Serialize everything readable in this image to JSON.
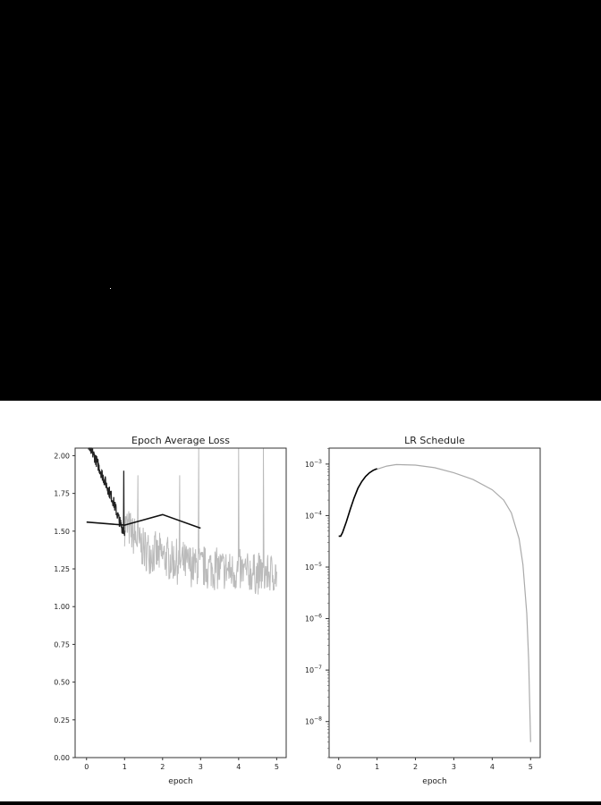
{
  "chart_data": [
    {
      "type": "line",
      "title": "Epoch Average Loss",
      "xlabel": "epoch",
      "ylabel": "",
      "xlim": [
        -0.3,
        5.25
      ],
      "ylim": [
        0.0,
        2.05
      ],
      "xticks": [
        "0",
        "1",
        "2",
        "3",
        "4",
        "5"
      ],
      "yticks": [
        "0.00",
        "0.25",
        "0.50",
        "0.75",
        "1.00",
        "1.25",
        "1.50",
        "1.75",
        "2.00"
      ],
      "grid": false,
      "series": [
        {
          "role": "smoothed-loss",
          "color": "#bbbbbb",
          "x_start": 1.0,
          "x_end": 5.0,
          "trend": [
            [
              1.0,
              1.55
            ],
            [
              1.5,
              1.38
            ],
            [
              2.0,
              1.33
            ],
            [
              2.5,
              1.29
            ],
            [
              3.0,
              1.26
            ],
            [
              3.5,
              1.25
            ],
            [
              4.0,
              1.23
            ],
            [
              4.5,
              1.22
            ],
            [
              5.0,
              1.22
            ]
          ],
          "noise": 0.12,
          "spikes": [
            [
              2.95,
              2.05
            ],
            [
              4.0,
              2.05
            ],
            [
              4.65,
              2.05
            ],
            [
              1.35,
              1.87
            ],
            [
              2.45,
              1.87
            ]
          ]
        },
        {
          "role": "early-loss",
          "color": "#222222",
          "points": [
            [
              0.05,
              2.05
            ],
            [
              0.1,
              2.04
            ],
            [
              0.2,
              2.0
            ],
            [
              0.3,
              1.94
            ],
            [
              0.4,
              1.88
            ],
            [
              0.5,
              1.82
            ],
            [
              0.6,
              1.76
            ],
            [
              0.7,
              1.7
            ],
            [
              0.8,
              1.62
            ],
            [
              0.9,
              1.54
            ],
            [
              1.0,
              1.5
            ]
          ],
          "noise": 0.04,
          "spikes": [
            [
              0.98,
              1.9
            ]
          ]
        },
        {
          "role": "epoch-average",
          "color": "#111111",
          "points": [
            [
              0.0,
              1.56
            ],
            [
              1.0,
              1.54
            ],
            [
              2.0,
              1.61
            ],
            [
              3.0,
              1.52
            ]
          ]
        }
      ]
    },
    {
      "type": "line",
      "title": "LR Schedule",
      "xlabel": "epoch",
      "ylabel": "",
      "yscale": "log",
      "xlim": [
        -0.25,
        5.25
      ],
      "ylim_log10": [
        -8.7,
        -2.69
      ],
      "xticks": [
        "0",
        "1",
        "2",
        "3",
        "4",
        "5"
      ],
      "yticks_log10": [
        -3,
        -4,
        -5,
        -6,
        -7,
        -8
      ],
      "grid": false,
      "series": [
        {
          "role": "lr-future",
          "color": "#aaaaaa",
          "points_log10": [
            [
              1.0,
              -3.1
            ],
            [
              1.25,
              -3.04
            ],
            [
              1.5,
              -3.01
            ],
            [
              2.0,
              -3.02
            ],
            [
              2.5,
              -3.07
            ],
            [
              3.0,
              -3.17
            ],
            [
              3.5,
              -3.3
            ],
            [
              4.0,
              -3.5
            ],
            [
              4.3,
              -3.7
            ],
            [
              4.5,
              -3.95
            ],
            [
              4.7,
              -4.45
            ],
            [
              4.8,
              -4.95
            ],
            [
              4.9,
              -5.9
            ],
            [
              4.95,
              -6.8
            ],
            [
              5.0,
              -8.4
            ]
          ]
        },
        {
          "role": "lr-elapsed",
          "color": "#000000",
          "points_log10": [
            [
              0.0,
              -4.4
            ],
            [
              0.05,
              -4.4
            ],
            [
              0.1,
              -4.33
            ],
            [
              0.2,
              -4.12
            ],
            [
              0.3,
              -3.88
            ],
            [
              0.4,
              -3.66
            ],
            [
              0.5,
              -3.47
            ],
            [
              0.6,
              -3.34
            ],
            [
              0.7,
              -3.24
            ],
            [
              0.8,
              -3.17
            ],
            [
              0.9,
              -3.12
            ],
            [
              1.0,
              -3.09
            ]
          ]
        }
      ]
    }
  ]
}
